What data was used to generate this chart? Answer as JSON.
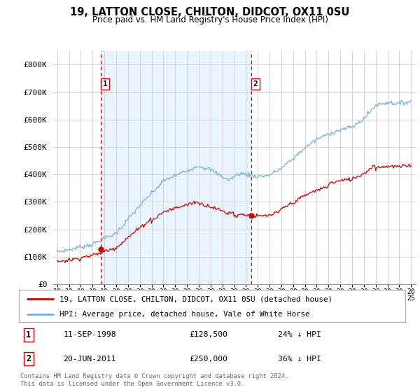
{
  "title": "19, LATTON CLOSE, CHILTON, DIDCOT, OX11 0SU",
  "subtitle": "Price paid vs. HM Land Registry's House Price Index (HPI)",
  "ylim": [
    0,
    850000
  ],
  "yticks": [
    0,
    100000,
    200000,
    300000,
    400000,
    500000,
    600000,
    700000,
    800000
  ],
  "ytick_labels": [
    "£0",
    "£100K",
    "£200K",
    "£300K",
    "£400K",
    "£500K",
    "£600K",
    "£700K",
    "£800K"
  ],
  "sale1_date": 1998.7,
  "sale1_price": 128500,
  "sale2_date": 2011.47,
  "sale2_price": 250000,
  "hpi_color": "#7aaed6",
  "hpi_fill": "#ddeeff",
  "price_color": "#cc0000",
  "vline_color": "#cc0000",
  "legend_label_price": "19, LATTON CLOSE, CHILTON, DIDCOT, OX11 0SU (detached house)",
  "legend_label_hpi": "HPI: Average price, detached house, Vale of White Horse",
  "table_row1": [
    "1",
    "11-SEP-1998",
    "£128,500",
    "24% ↓ HPI"
  ],
  "table_row2": [
    "2",
    "20-JUN-2011",
    "£250,000",
    "36% ↓ HPI"
  ],
  "footnote": "Contains HM Land Registry data © Crown copyright and database right 2024.\nThis data is licensed under the Open Government Licence v3.0.",
  "background_color": "#ffffff",
  "grid_color": "#cccccc"
}
